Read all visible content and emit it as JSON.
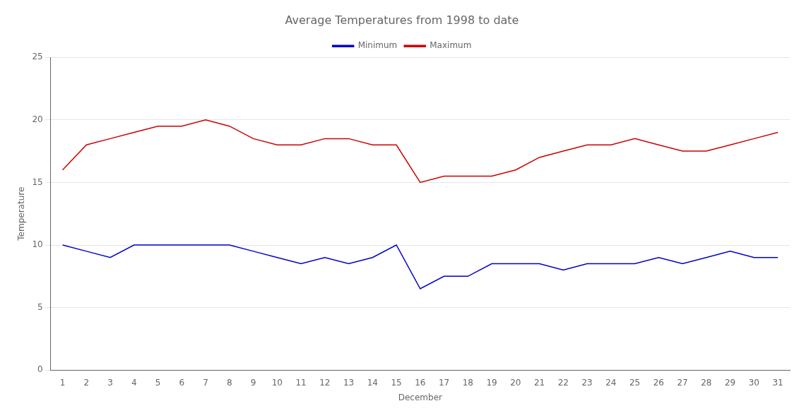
{
  "chart_data": {
    "type": "line",
    "title": "Average Temperatures from 1998 to date",
    "xlabel": "December",
    "ylabel": "Temperature",
    "x": [
      1,
      2,
      3,
      4,
      5,
      6,
      7,
      8,
      9,
      10,
      11,
      12,
      13,
      14,
      15,
      16,
      17,
      18,
      19,
      20,
      21,
      22,
      23,
      24,
      25,
      26,
      27,
      28,
      29,
      30,
      31
    ],
    "series": [
      {
        "name": "Minimum",
        "color": "#0000cc",
        "values": [
          10,
          9.5,
          9,
          10,
          10,
          10,
          10,
          10,
          9.5,
          9,
          8.5,
          9,
          8.5,
          9,
          10,
          6.5,
          7.5,
          7.5,
          8.5,
          8.5,
          8.5,
          8,
          8.5,
          8.5,
          8.5,
          9,
          8.5,
          9,
          9.5,
          9,
          9
        ]
      },
      {
        "name": "Maximum",
        "color": "#cc0000",
        "values": [
          16,
          18,
          18.5,
          19,
          19.5,
          19.5,
          20,
          19.5,
          18.5,
          18,
          18,
          18.5,
          18.5,
          18,
          18,
          15,
          15.5,
          15.5,
          15.5,
          16,
          17,
          17.5,
          18,
          18,
          18.5,
          18,
          17.5,
          17.5,
          18,
          18.5,
          19
        ]
      }
    ],
    "xlim": [
      0.5,
      31.5
    ],
    "xticks": [
      1,
      2,
      3,
      4,
      5,
      6,
      7,
      8,
      9,
      10,
      11,
      12,
      13,
      14,
      15,
      16,
      17,
      18,
      19,
      20,
      21,
      22,
      23,
      24,
      25,
      26,
      27,
      28,
      29,
      30,
      31
    ],
    "ylim": [
      0,
      25
    ],
    "yticks": [
      0,
      5,
      10,
      15,
      20,
      25
    ],
    "grid": "y",
    "legend": "top"
  }
}
